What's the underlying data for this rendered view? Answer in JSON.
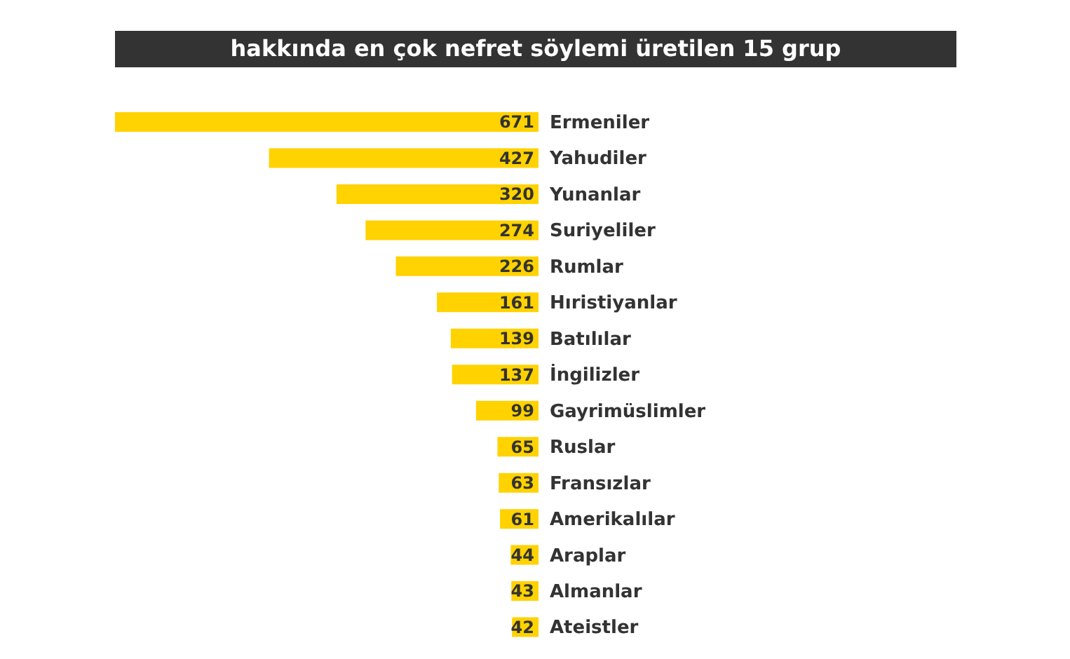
{
  "chart_data": {
    "type": "bar",
    "orientation": "horizontal",
    "title": "hakkında en çok nefret söylemi üretilen 15 grup",
    "categories": [
      "Ermeniler",
      "Yahudiler",
      "Yunanlar",
      "Suriyeliler",
      "Rumlar",
      "Hıristiyanlar",
      "Batılılar",
      "İngilizler",
      "Gayrimüslimler",
      "Ruslar",
      "Fransızlar",
      "Amerikalılar",
      "Araplar",
      "Almanlar",
      "Ateistler"
    ],
    "values": [
      671,
      427,
      320,
      274,
      226,
      161,
      139,
      137,
      99,
      65,
      63,
      61,
      44,
      43,
      42
    ],
    "color": "#ffd200",
    "data_labels": true
  }
}
